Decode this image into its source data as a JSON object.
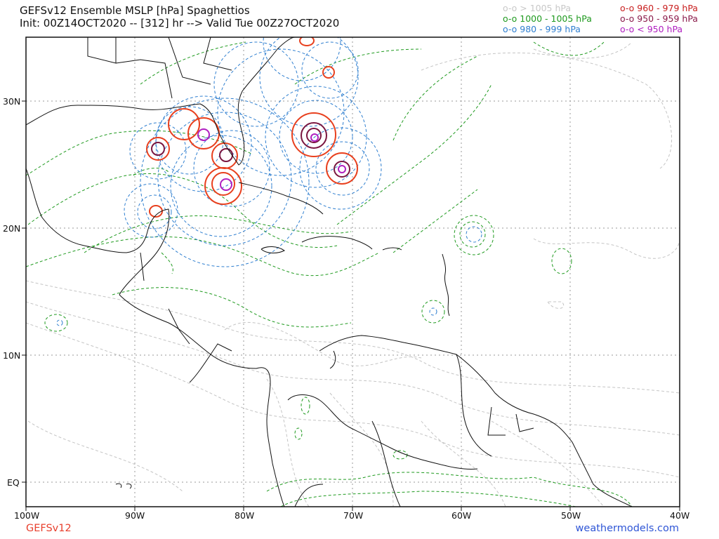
{
  "header": {
    "title": "GEFSv12 Ensemble MSLP [hPa] Spaghettios",
    "subtitle": "Init: 00Z14OCT2020 -- [312] hr --> Valid Tue 00Z27OCT2020"
  },
  "legend": {
    "left": [
      {
        "label": "o-o > 1005 hPa",
        "color": "#c8c8c8"
      },
      {
        "label": "o-o 1000 - 1005 hPa",
        "color": "#1f9a1f"
      },
      {
        "label": "o-o 980 - 999 hPa",
        "color": "#2f7fd0"
      }
    ],
    "right": [
      {
        "label": "o-o 960 - 979 hPa",
        "color": "#c81e1e"
      },
      {
        "label": "o-o 950 - 959 hPa",
        "color": "#8a1a4a"
      },
      {
        "label": "o-o < 950 hPa",
        "color": "#b020c0"
      }
    ]
  },
  "axes": {
    "lon_labels": [
      "100W",
      "90W",
      "80W",
      "70W",
      "60W",
      "50W",
      "40W"
    ],
    "lat_labels": [
      "30N",
      "20N",
      "10N",
      "EQ"
    ]
  },
  "footer": {
    "model": "GEFSv12",
    "site": "weathermodels.com"
  }
}
